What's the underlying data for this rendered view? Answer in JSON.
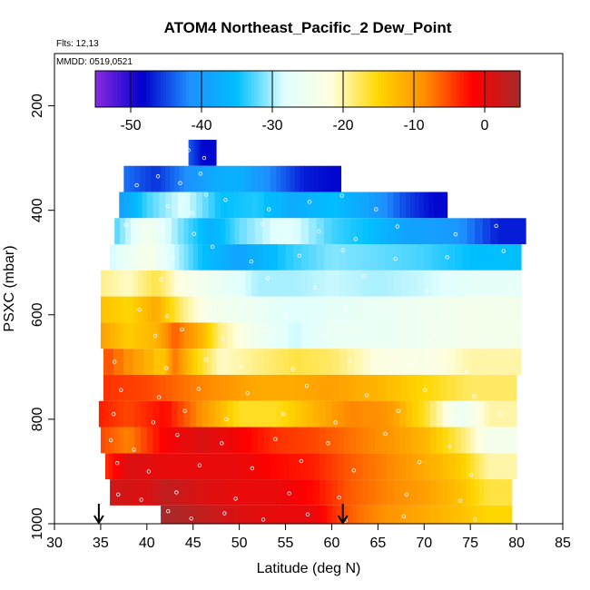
{
  "chart_data": {
    "type": "heatmap",
    "title": "ATOM4 Northeast_Pacific_2 Dew_Point",
    "flights_note": "Flts: 12,13",
    "dates_note": "MMDD: 0519,0521",
    "xlabel": "Latitude (deg N)",
    "ylabel": "PSXC (mbar)",
    "xlim": [
      30,
      85
    ],
    "ylim": [
      1000,
      100
    ],
    "x_ticks": [
      30,
      35,
      40,
      45,
      50,
      55,
      60,
      65,
      70,
      75,
      80,
      85
    ],
    "y_ticks": [
      200,
      400,
      600,
      800,
      1000
    ],
    "colorbar": {
      "min": -55,
      "max": 5,
      "ticks": [
        -50,
        -40,
        -30,
        -20,
        -10,
        0
      ],
      "tick_labels": [
        "-50",
        "-40",
        "-30",
        "-20",
        "-10",
        "0"
      ],
      "colors": [
        "#8a2be2",
        "#0000cd",
        "#1e90ff",
        "#00bfff",
        "#e0ffff",
        "#ffffe0",
        "#ffd700",
        "#ff8c00",
        "#ff0000",
        "#a52a2a"
      ]
    },
    "colorbar_dividers": [
      -50,
      -40,
      -30,
      -20,
      -10,
      0
    ],
    "markers": {
      "latitudes": [
        34.8,
        61.2
      ],
      "pressure": 1000
    },
    "rows": [
      {
        "p_top": 265,
        "p_bot": 315,
        "segments": [
          [
            44.5,
            -44
          ],
          [
            46,
            -48
          ],
          [
            47.5,
            null
          ]
        ]
      },
      {
        "p_top": 315,
        "p_bot": 365,
        "segments": [
          [
            37.5,
            -43
          ],
          [
            41,
            -46
          ],
          [
            44,
            -42
          ],
          [
            47,
            -38
          ],
          [
            50,
            -37
          ],
          [
            54,
            -43
          ],
          [
            57,
            -47
          ],
          [
            60,
            -48
          ],
          [
            61,
            null
          ]
        ]
      },
      {
        "p_top": 365,
        "p_bot": 415,
        "segments": [
          [
            37,
            -40
          ],
          [
            40,
            -33
          ],
          [
            44,
            -28
          ],
          [
            48,
            -35
          ],
          [
            52,
            -34
          ],
          [
            56,
            -38
          ],
          [
            60,
            -35
          ],
          [
            64,
            -39
          ],
          [
            68,
            -45
          ],
          [
            71,
            -48
          ],
          [
            72.5,
            null
          ]
        ]
      },
      {
        "p_top": 415,
        "p_bot": 465,
        "segments": [
          [
            36.5,
            -33
          ],
          [
            40,
            -24
          ],
          [
            44,
            -32
          ],
          [
            47,
            -37
          ],
          [
            50,
            -32
          ],
          [
            55,
            -27
          ],
          [
            60,
            -33
          ],
          [
            64,
            -35
          ],
          [
            68,
            -39
          ],
          [
            73,
            -40
          ],
          [
            78,
            -47
          ],
          [
            81,
            null
          ]
        ]
      },
      {
        "p_top": 465,
        "p_bot": 515,
        "segments": [
          [
            36,
            -29
          ],
          [
            40,
            -23
          ],
          [
            43,
            -29
          ],
          [
            46,
            -35
          ],
          [
            50,
            -39
          ],
          [
            55,
            -34
          ],
          [
            60,
            -31
          ],
          [
            65,
            -32
          ],
          [
            70,
            -33
          ],
          [
            75,
            -35
          ],
          [
            80.5,
            null
          ]
        ]
      },
      {
        "p_top": 515,
        "p_bot": 565,
        "segments": [
          [
            35,
            -19
          ],
          [
            38,
            -21
          ],
          [
            41,
            -17
          ],
          [
            44,
            -23
          ],
          [
            48,
            -26
          ],
          [
            52,
            -30
          ],
          [
            56,
            -30
          ],
          [
            60,
            -29
          ],
          [
            65,
            -30
          ],
          [
            70,
            -29
          ],
          [
            75,
            -27
          ],
          [
            80.5,
            null
          ]
        ]
      },
      {
        "p_top": 565,
        "p_bot": 615,
        "segments": [
          [
            35,
            -13
          ],
          [
            38,
            -15
          ],
          [
            41,
            -11
          ],
          [
            44,
            -19
          ],
          [
            47,
            -24
          ],
          [
            52,
            -26
          ],
          [
            56,
            -28
          ],
          [
            60,
            -27
          ],
          [
            65,
            -26
          ],
          [
            70,
            -25
          ],
          [
            75,
            -24
          ],
          [
            80.5,
            null
          ]
        ]
      },
      {
        "p_top": 615,
        "p_bot": 665,
        "segments": [
          [
            35,
            -10
          ],
          [
            38,
            -14
          ],
          [
            41,
            -12
          ],
          [
            43,
            -6
          ],
          [
            46,
            -12
          ],
          [
            48,
            -19
          ],
          [
            52,
            -25
          ],
          [
            56,
            -29
          ],
          [
            60,
            -26
          ],
          [
            65,
            -26
          ],
          [
            70,
            -25
          ],
          [
            75,
            -24
          ],
          [
            80.5,
            null
          ]
        ]
      },
      {
        "p_top": 665,
        "p_bot": 715,
        "segments": [
          [
            35.3,
            -5
          ],
          [
            41.8,
            -14
          ],
          [
            43,
            -7
          ],
          [
            45,
            -14
          ],
          [
            48,
            -21
          ],
          [
            52,
            -19
          ],
          [
            56,
            -17
          ],
          [
            60,
            -18
          ],
          [
            65,
            -22
          ],
          [
            70,
            -23
          ],
          [
            75,
            -20
          ],
          [
            80.5,
            null
          ]
        ]
      },
      {
        "p_top": 715,
        "p_bot": 765,
        "segments": [
          [
            35.3,
            -4
          ],
          [
            40,
            -5
          ],
          [
            44,
            -7
          ],
          [
            48,
            -9
          ],
          [
            52,
            -11
          ],
          [
            56,
            -11
          ],
          [
            60,
            -10
          ],
          [
            65,
            -12
          ],
          [
            70,
            -15
          ],
          [
            75,
            -18
          ],
          [
            80,
            null
          ]
        ]
      },
      {
        "p_top": 765,
        "p_bot": 815,
        "segments": [
          [
            34.8,
            -3
          ],
          [
            38,
            -5
          ],
          [
            42,
            -2
          ],
          [
            46,
            -9
          ],
          [
            50,
            -16
          ],
          [
            54,
            -16
          ],
          [
            58,
            -12
          ],
          [
            62,
            -8
          ],
          [
            66,
            -9
          ],
          [
            70,
            -16
          ],
          [
            74,
            -26
          ],
          [
            77,
            -20
          ],
          [
            80,
            null
          ]
        ]
      },
      {
        "p_top": 815,
        "p_bot": 865,
        "segments": [
          [
            35,
            -5
          ],
          [
            38,
            -8
          ],
          [
            42,
            -1
          ],
          [
            46,
            1
          ],
          [
            50,
            -1
          ],
          [
            54,
            -4
          ],
          [
            58,
            -5
          ],
          [
            62,
            -7
          ],
          [
            66,
            -9
          ],
          [
            70,
            -12
          ],
          [
            74,
            -18
          ],
          [
            77,
            -24
          ],
          [
            80,
            null
          ]
        ]
      },
      {
        "p_top": 865,
        "p_bot": 915,
        "segments": [
          [
            35.5,
            -4
          ],
          [
            38,
            1
          ],
          [
            42,
            0
          ],
          [
            46,
            0
          ],
          [
            50,
            0
          ],
          [
            54,
            -2
          ],
          [
            58,
            -3
          ],
          [
            62,
            -6
          ],
          [
            66,
            -8
          ],
          [
            70,
            -11
          ],
          [
            74,
            -14
          ],
          [
            77,
            -20
          ],
          [
            80,
            null
          ]
        ]
      },
      {
        "p_top": 915,
        "p_bot": 965,
        "segments": [
          [
            36,
            2
          ],
          [
            40,
            1
          ],
          [
            42,
            3
          ],
          [
            46,
            1
          ],
          [
            50,
            0
          ],
          [
            54,
            0
          ],
          [
            58,
            -2
          ],
          [
            62,
            -6
          ],
          [
            66,
            -8
          ],
          [
            70,
            -10
          ],
          [
            74,
            -13
          ],
          [
            77,
            -17
          ],
          [
            79.5,
            null
          ]
        ]
      },
      {
        "p_top": 965,
        "p_bot": 1000,
        "segments": [
          [
            41.5,
            5
          ],
          [
            46,
            3
          ],
          [
            50,
            1
          ],
          [
            54,
            0
          ],
          [
            58,
            0
          ],
          [
            61,
            -5
          ],
          [
            63,
            -7
          ],
          [
            66,
            -9
          ],
          [
            70,
            -11
          ],
          [
            74,
            -13
          ],
          [
            77,
            -15
          ],
          [
            79.5,
            null
          ]
        ]
      }
    ],
    "points": [
      [
        44.5,
        285
      ],
      [
        46.2,
        300
      ],
      [
        41.2,
        335
      ],
      [
        43.6,
        348
      ],
      [
        45.8,
        330
      ],
      [
        38.9,
        352
      ],
      [
        46.4,
        370
      ],
      [
        42.3,
        392
      ],
      [
        44.9,
        405
      ],
      [
        48.5,
        380
      ],
      [
        53.2,
        398
      ],
      [
        57.6,
        384
      ],
      [
        61.1,
        372
      ],
      [
        64.8,
        398
      ],
      [
        37.7,
        428
      ],
      [
        41.6,
        436
      ],
      [
        45.1,
        445
      ],
      [
        52.5,
        426
      ],
      [
        58.6,
        440
      ],
      [
        62.6,
        455
      ],
      [
        67.1,
        431
      ],
      [
        73.4,
        446
      ],
      [
        77.8,
        430
      ],
      [
        38.1,
        480
      ],
      [
        42.8,
        490
      ],
      [
        47.1,
        470
      ],
      [
        51.3,
        498
      ],
      [
        56.5,
        487
      ],
      [
        61.2,
        476
      ],
      [
        66.9,
        493
      ],
      [
        72.5,
        490
      ],
      [
        78.6,
        478
      ],
      [
        41.5,
        532
      ],
      [
        43.1,
        552
      ],
      [
        47.5,
        540
      ],
      [
        53.1,
        530
      ],
      [
        58.2,
        548
      ],
      [
        63.5,
        526
      ],
      [
        70.3,
        554
      ],
      [
        76.3,
        540
      ],
      [
        79.6,
        556
      ],
      [
        39.2,
        590
      ],
      [
        42.2,
        603
      ],
      [
        46.8,
        590
      ],
      [
        50.4,
        578
      ],
      [
        55.1,
        604
      ],
      [
        61.5,
        590
      ],
      [
        66.2,
        582
      ],
      [
        72.6,
        610
      ],
      [
        78.4,
        600
      ],
      [
        40.9,
        640
      ],
      [
        43.8,
        628
      ],
      [
        48.2,
        646
      ],
      [
        52.9,
        630
      ],
      [
        59.1,
        640
      ],
      [
        64.3,
        658
      ],
      [
        71.2,
        636
      ],
      [
        77.1,
        650
      ],
      [
        79.8,
        630
      ],
      [
        36.5,
        690
      ],
      [
        42.1,
        702
      ],
      [
        46.4,
        686
      ],
      [
        50.2,
        700
      ],
      [
        55.8,
        704
      ],
      [
        61.9,
        688
      ],
      [
        68.4,
        696
      ],
      [
        74.6,
        710
      ],
      [
        37.2,
        744
      ],
      [
        41.3,
        758
      ],
      [
        45.6,
        742
      ],
      [
        50.9,
        750
      ],
      [
        57.3,
        736
      ],
      [
        63.8,
        754
      ],
      [
        70.1,
        744
      ],
      [
        75.4,
        756
      ],
      [
        36.4,
        790
      ],
      [
        40.7,
        806
      ],
      [
        44.1,
        784
      ],
      [
        48.6,
        800
      ],
      [
        54.8,
        790
      ],
      [
        60.4,
        806
      ],
      [
        67.2,
        784
      ],
      [
        73.1,
        798
      ],
      [
        78.2,
        790
      ],
      [
        36.1,
        840
      ],
      [
        38.6,
        858
      ],
      [
        43.3,
        830
      ],
      [
        48.1,
        846
      ],
      [
        53.9,
        838
      ],
      [
        59.6,
        846
      ],
      [
        65.8,
        828
      ],
      [
        72.8,
        852
      ],
      [
        77.4,
        836
      ],
      [
        36.8,
        884
      ],
      [
        40.2,
        900
      ],
      [
        45.7,
        888
      ],
      [
        51.4,
        894
      ],
      [
        56.7,
        880
      ],
      [
        62.4,
        898
      ],
      [
        69.5,
        882
      ],
      [
        75.1,
        906
      ],
      [
        36.9,
        944
      ],
      [
        39.4,
        954
      ],
      [
        43.2,
        940
      ],
      [
        49.6,
        952
      ],
      [
        55.4,
        942
      ],
      [
        60.8,
        950
      ],
      [
        68.1,
        944
      ],
      [
        73.9,
        956
      ],
      [
        42.3,
        976
      ],
      [
        44.8,
        990
      ],
      [
        48.4,
        980
      ],
      [
        52.6,
        992
      ],
      [
        57.4,
        982
      ],
      [
        61.5,
        994
      ],
      [
        67.8,
        986
      ],
      [
        75.5,
        992
      ]
    ]
  }
}
